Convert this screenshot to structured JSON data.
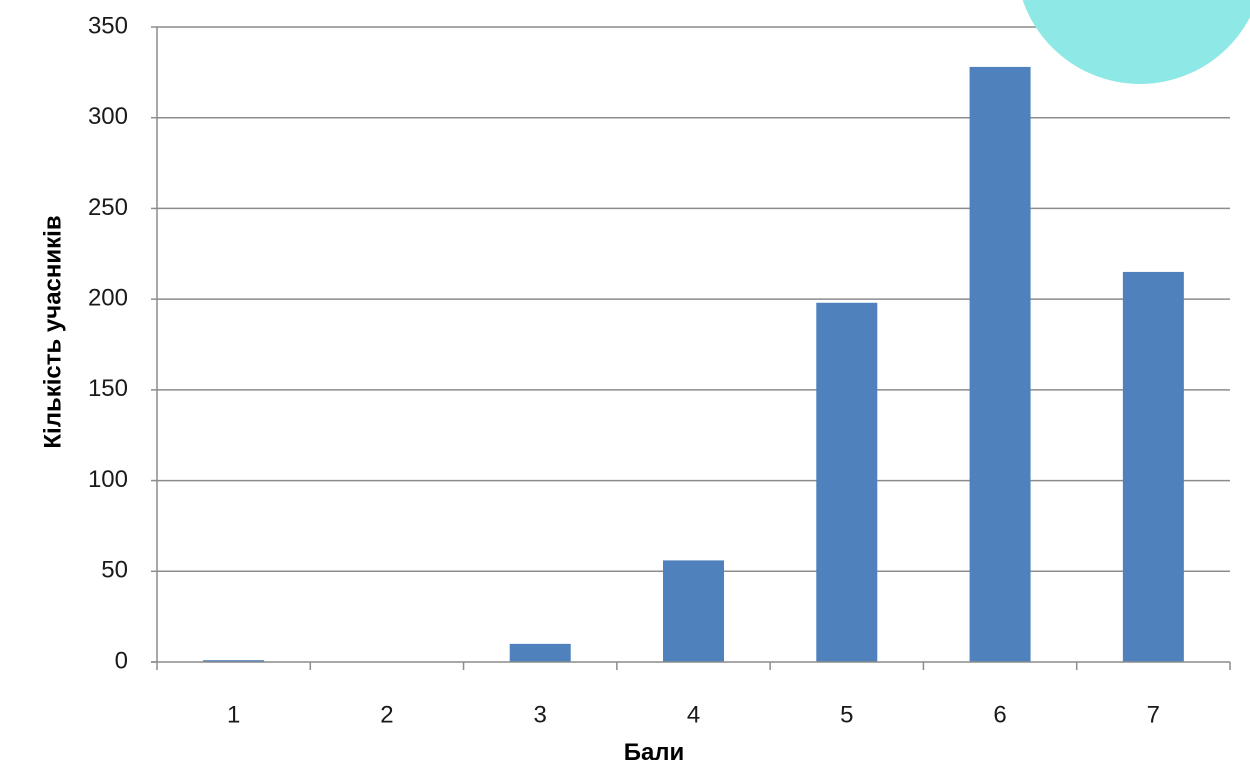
{
  "chart_data": {
    "type": "bar",
    "title": "",
    "xlabel": "Бали",
    "ylabel": "Кількість учасників",
    "categories": [
      "1",
      "2",
      "3",
      "4",
      "5",
      "6",
      "7"
    ],
    "values": [
      1,
      0,
      10,
      56,
      198,
      328,
      215
    ],
    "ylim": [
      0,
      350
    ],
    "yticks": [
      "0",
      "50",
      "100",
      "150",
      "200",
      "250",
      "300",
      "350"
    ],
    "grid": true,
    "legend": "none",
    "colors": {
      "bar": "#4f81bd",
      "grid": "#8c8c8c",
      "decoration": "#8ee8e6"
    }
  }
}
